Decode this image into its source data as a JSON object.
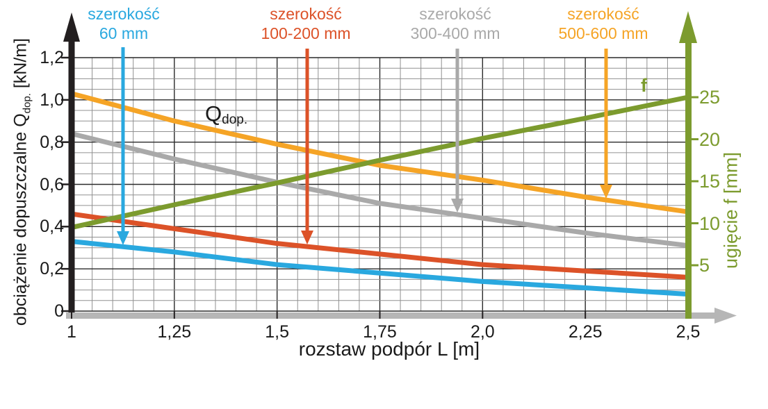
{
  "title_annotations": {
    "q_main": "Q",
    "q_sub": "dop.",
    "f": "f"
  },
  "curve_labels": [
    {
      "line1": "szerokość",
      "line2": "60 mm"
    },
    {
      "line1": "szerokość",
      "line2": "100-200 mm"
    },
    {
      "line1": "szerokość",
      "line2": "300-400 mm"
    },
    {
      "line1": "szerokość",
      "line2": "500-600 mm"
    }
  ],
  "axes_titles": {
    "left_pre": "obciążenie dopuszczalne Q",
    "left_sub": "dop.",
    "left_post": " [kN/m]",
    "bottom": "rozstaw podpór L [m]",
    "right": "ugięcie f [mm]"
  },
  "chart_data": {
    "type": "line",
    "title": "",
    "xlabel": "rozstaw podpór L [m]",
    "x": [
      1,
      1.25,
      1.5,
      1.75,
      2.0,
      2.25,
      2.5
    ],
    "x_ticks": [
      {
        "value": 1,
        "label": "1"
      },
      {
        "value": 1.25,
        "label": "1,25"
      },
      {
        "value": 1.5,
        "label": "1,5"
      },
      {
        "value": 1.75,
        "label": "1,75"
      },
      {
        "value": 2.0,
        "label": "2,0"
      },
      {
        "value": 2.25,
        "label": "2,25"
      },
      {
        "value": 2.5,
        "label": "2,5"
      }
    ],
    "y_left": {
      "label": "obciążenie dopuszczalne Qdop. [kN/m]",
      "range": [
        0,
        1.2
      ],
      "ticks": [
        {
          "value": 1.2,
          "label": "1,2"
        },
        {
          "value": 1.0,
          "label": "1,0"
        },
        {
          "value": 0.8,
          "label": "0,8"
        },
        {
          "value": 0.6,
          "label": "0,6"
        },
        {
          "value": 0.4,
          "label": "0,4"
        },
        {
          "value": 0.2,
          "label": "0,2"
        },
        {
          "value": 0,
          "label": "0"
        }
      ]
    },
    "y_right": {
      "label": "ugięcie f [mm]",
      "range": [
        0,
        26
      ],
      "ticks": [
        {
          "value": 25,
          "label": "25"
        },
        {
          "value": 20,
          "label": "20"
        },
        {
          "value": 15,
          "label": "15"
        },
        {
          "value": 10,
          "label": "10"
        },
        {
          "value": 5,
          "label": "5"
        }
      ]
    },
    "series": [
      {
        "name": "szerokość 60 mm",
        "axis": "left",
        "color": "#29A8DF",
        "values": [
          0.33,
          0.28,
          0.22,
          0.18,
          0.14,
          0.11,
          0.08
        ]
      },
      {
        "name": "szerokość 100-200 mm",
        "axis": "left",
        "color": "#DC5228",
        "values": [
          0.46,
          0.39,
          0.32,
          0.27,
          0.22,
          0.19,
          0.16
        ]
      },
      {
        "name": "szerokość 300-400 mm",
        "axis": "left",
        "color": "#A9A9A9",
        "values": [
          0.84,
          0.72,
          0.61,
          0.51,
          0.44,
          0.37,
          0.31
        ]
      },
      {
        "name": "szerokość 500-600 mm",
        "axis": "left",
        "color": "#F5A426",
        "values": [
          1.03,
          0.9,
          0.79,
          0.69,
          0.62,
          0.54,
          0.47
        ]
      },
      {
        "name": "ugięcie f",
        "axis": "right",
        "color": "#7C9B2E",
        "values": [
          9.5,
          12.2,
          14.8,
          17.5,
          20.1,
          22.5,
          25.0
        ]
      }
    ],
    "annotations": {
      "qdop_curve_label": "Qdop.",
      "f_curve_label": "f"
    },
    "grid": {
      "x_minor_step": 0.05,
      "x_major_step": 0.25,
      "y_minor_step": 0.05,
      "y_major_step": 0.2,
      "minor_color": "#909090",
      "major_color": "#2a2a2a"
    },
    "axis_colors": {
      "y_left": "#231f20",
      "x": "#b6b6b6"
    },
    "legend_position": "top-labels-with-arrows"
  }
}
